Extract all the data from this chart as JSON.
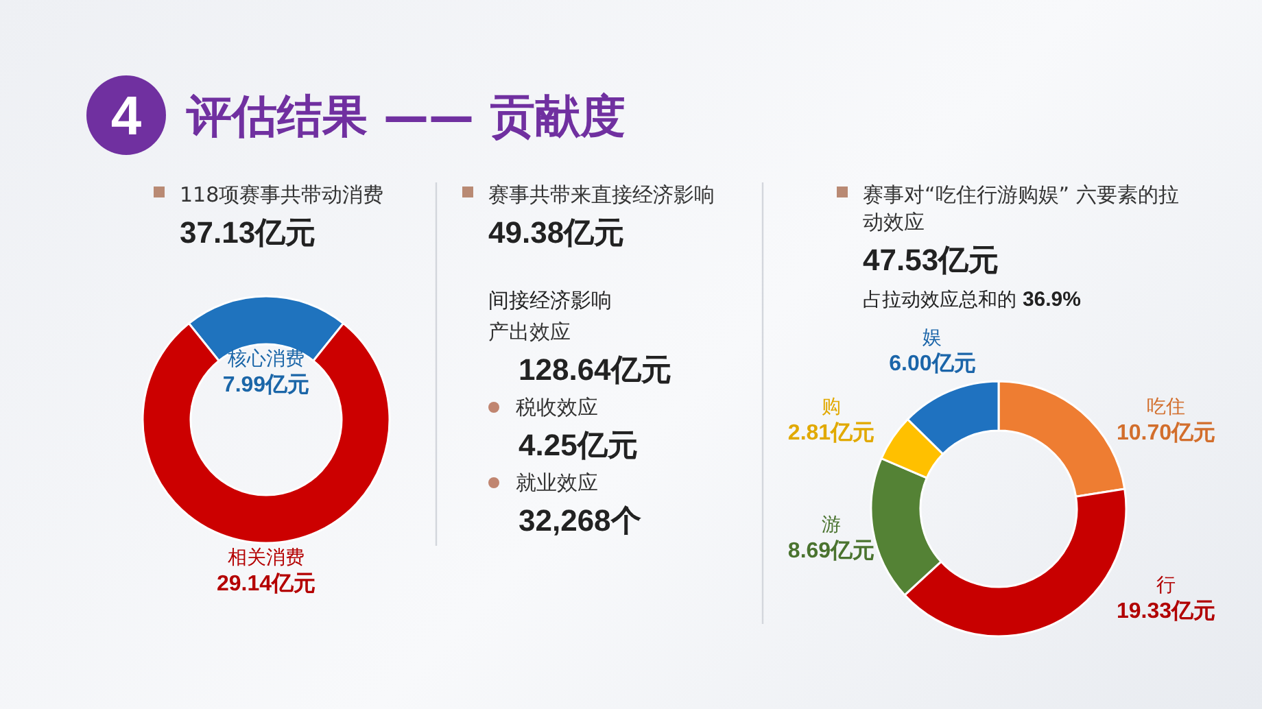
{
  "chart_data": [
    {
      "type": "other",
      "title": "评估结果 —— 贡献度",
      "annotations": [
        "4"
      ]
    },
    {
      "type": "donut",
      "title": "118项赛事共带动消费",
      "subtitle": "37.13亿元",
      "categories": [
        "核心消费",
        "相关消费"
      ],
      "values": [
        7.99,
        29.14
      ],
      "colors": [
        "#1f73be",
        "#cc0000"
      ],
      "value_labels": [
        "7.99亿元",
        "29.14亿元"
      ]
    },
    {
      "type": "other",
      "title": "赛事共带来直接经济影响",
      "subtitle": "49.38亿元",
      "annotations": [
        "间接经济影响",
        "产出效应",
        "128.64亿元",
        "税收效应",
        "4.25亿元",
        "就业效应",
        "32,268个"
      ]
    },
    {
      "type": "donut",
      "title": "赛事对“吃住行游购娱” 六要素的拉动效应",
      "subtitle": "47.53亿元",
      "annotations": [
        "占拉动效应总和的 36.9%"
      ],
      "categories": [
        "吃住",
        "行",
        "游",
        "购",
        "娱"
      ],
      "values": [
        10.7,
        19.33,
        8.69,
        2.81,
        6.0
      ],
      "colors": [
        "#ee7d32",
        "#c80000",
        "#548235",
        "#ffc000",
        "#1f72c0"
      ],
      "value_labels": [
        "10.70亿元",
        "19.33亿元",
        "8.69亿元",
        "2.81亿元",
        "6.00亿元"
      ]
    }
  ]
}
